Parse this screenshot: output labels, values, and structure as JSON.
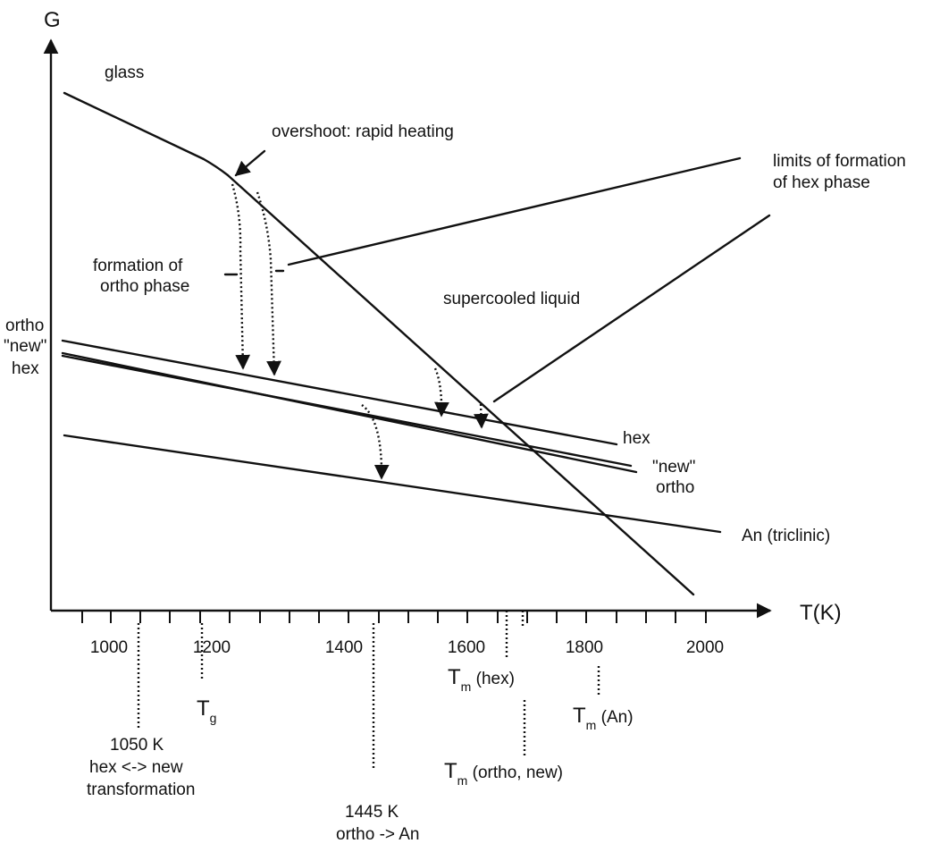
{
  "axes": {
    "y_label": "G",
    "x_label": "T(K)",
    "x_ticks": [
      "1000",
      "1200",
      "1400",
      "1600",
      "1800",
      "2000"
    ]
  },
  "phases": {
    "glass": "glass",
    "supercooled_liquid": "supercooled liquid",
    "left_ortho": "ortho",
    "left_new": "\"new\"",
    "left_hex": "hex",
    "right_hex": "hex",
    "right_new": "\"new\"",
    "right_ortho": "ortho",
    "anorthite": "An (triclinic)"
  },
  "annotations": {
    "overshoot": "overshoot: rapid heating",
    "formation_ortho_line1": "formation of",
    "formation_ortho_line2": "ortho phase",
    "limits_hex_line1": "limits of formation",
    "limits_hex_line2": "of hex phase"
  },
  "temperature_markers": {
    "tg": {
      "main": "T",
      "sub": "g"
    },
    "tm_hex": {
      "main": "T",
      "sub": "m",
      "rest": " (hex)"
    },
    "tm_ortho_new": {
      "main": "T",
      "sub": "m",
      "rest": " (ortho, new)"
    },
    "tm_an": {
      "main": "T",
      "sub": "m",
      "rest": " (An)"
    },
    "t1050": {
      "line1": "1050 K",
      "line2": "hex <-> new",
      "line3": "transformation"
    },
    "t1445": {
      "line1": "1445 K",
      "line2": "ortho -> An"
    }
  }
}
